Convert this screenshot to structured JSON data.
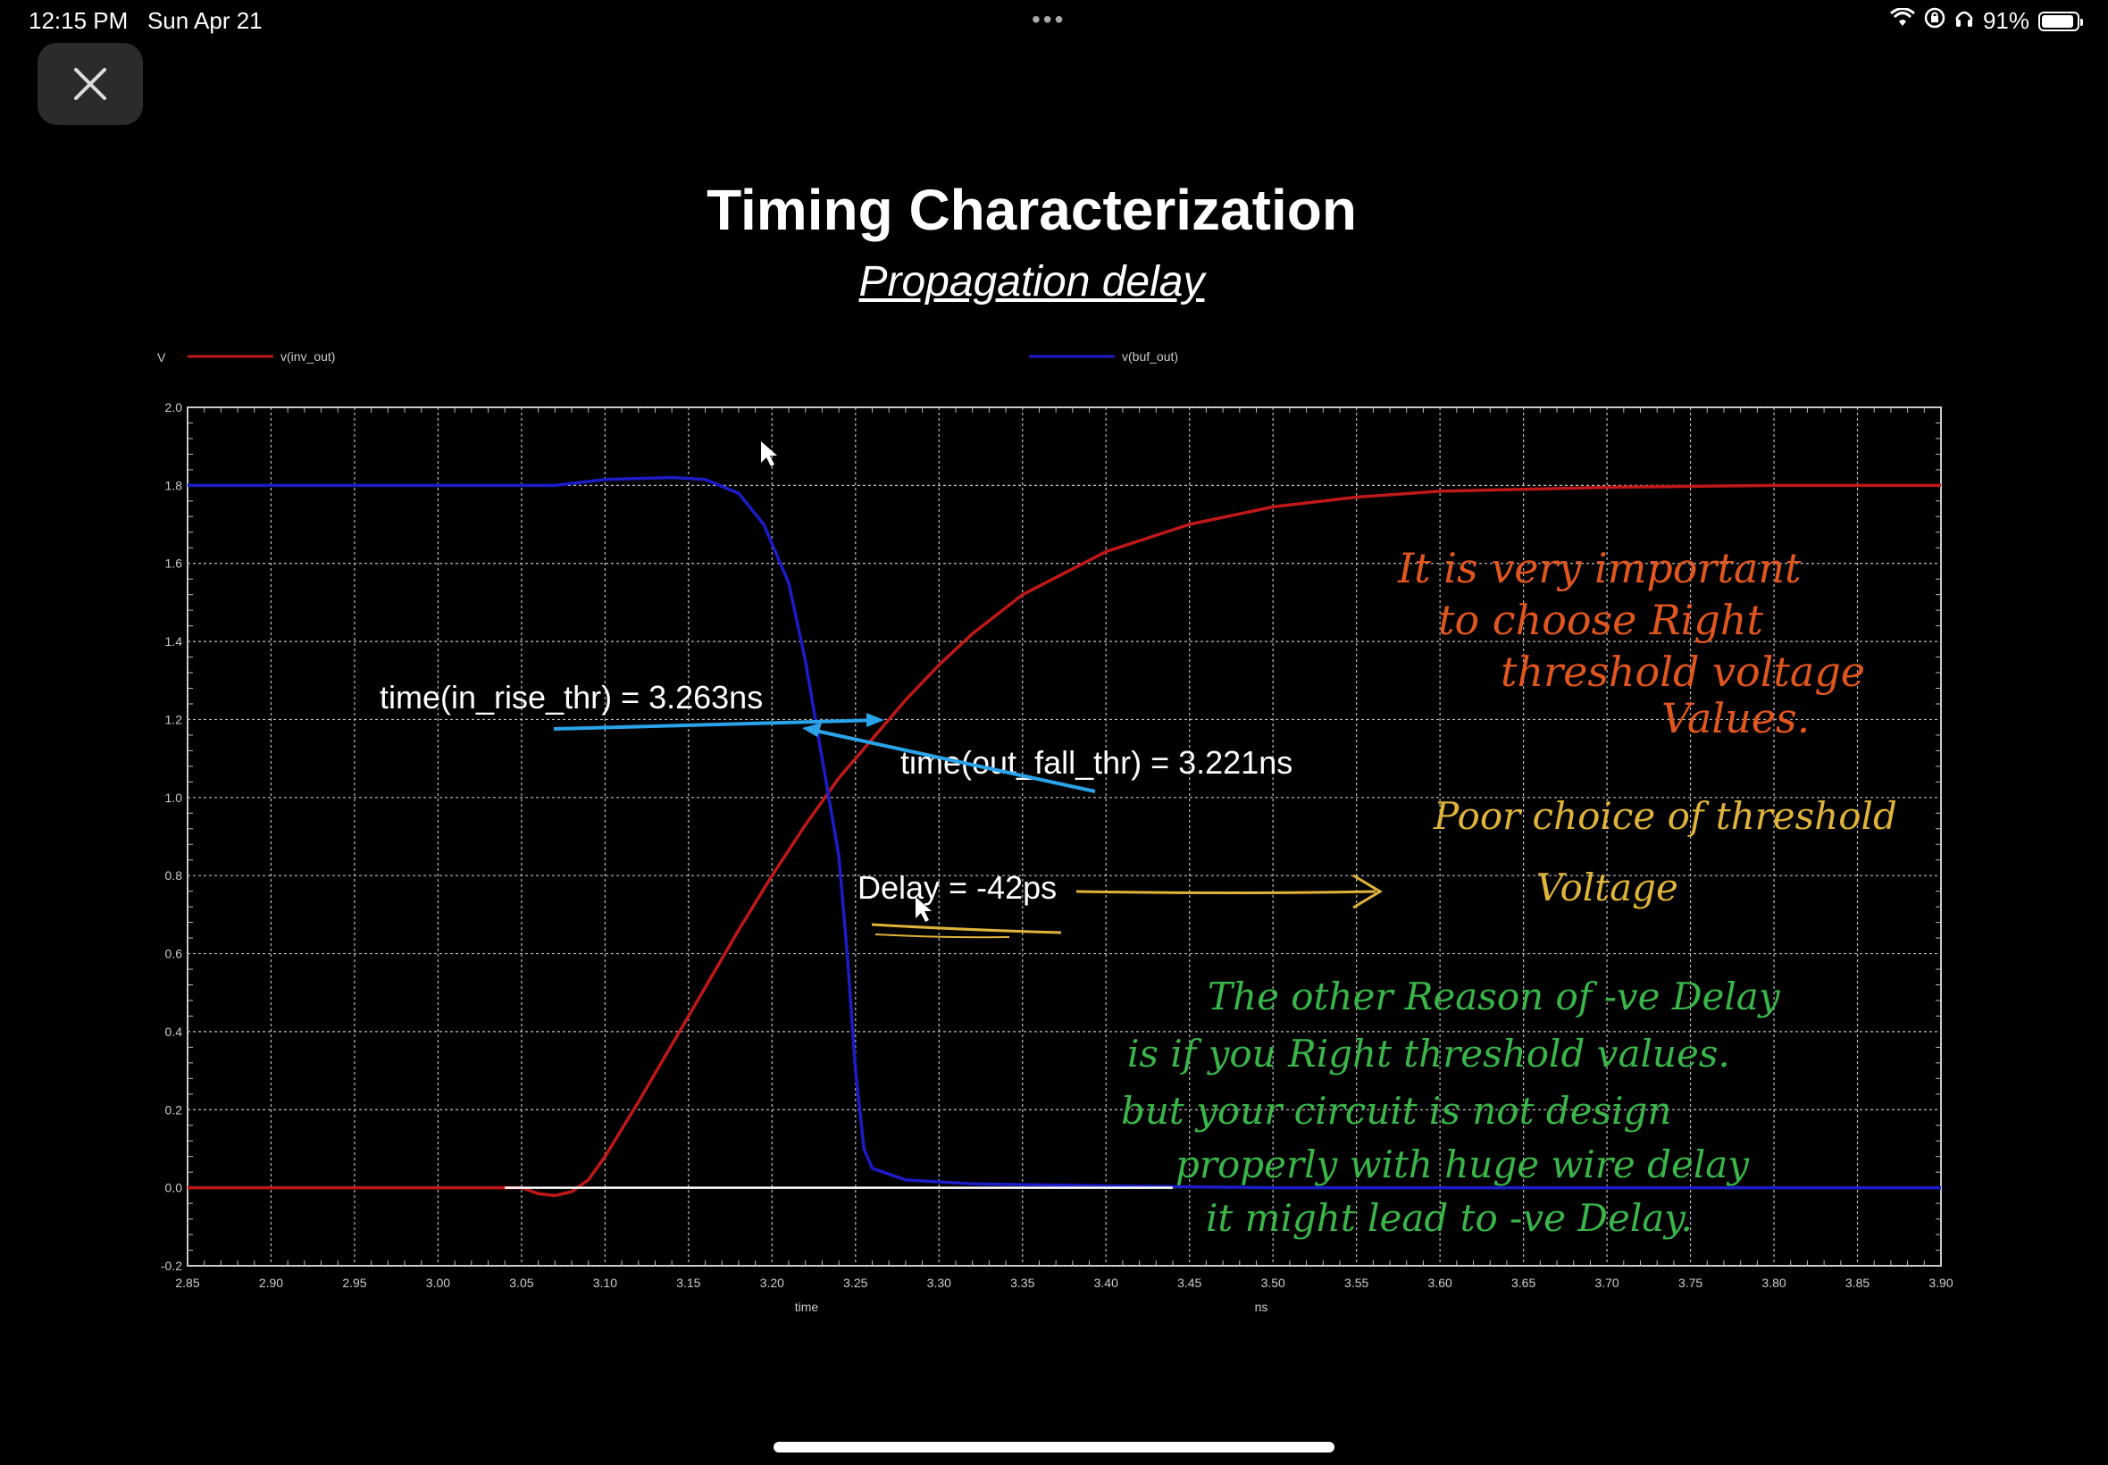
{
  "status_bar": {
    "time": "12:15 PM",
    "date": "Sun Apr 21",
    "battery_percent": "91%",
    "battery_level": 0.91
  },
  "slide": {
    "title": "Timing Characterization",
    "subtitle": "Propagation delay"
  },
  "chart_data": {
    "type": "line",
    "ylabel": "V",
    "xlabel": "time",
    "x_unit": "ns",
    "xlim": [
      2.85,
      3.9
    ],
    "ylim": [
      -0.2,
      2.0
    ],
    "x_ticks": [
      "2.85",
      "2.90",
      "2.95",
      "3.00",
      "3.05",
      "3.10",
      "3.15",
      "3.20",
      "3.25",
      "3.30",
      "3.35",
      "3.40",
      "3.45",
      "3.50",
      "3.55",
      "3.60",
      "3.65",
      "3.70",
      "3.75",
      "3.80",
      "3.85",
      "3.90"
    ],
    "y_ticks": [
      "2.0",
      "1.8",
      "1.6",
      "1.4",
      "1.2",
      "1.0",
      "0.8",
      "0.6",
      "0.4",
      "0.2",
      "0.0",
      "-0.2"
    ],
    "grid": true,
    "legend_placement": "top",
    "series": [
      {
        "name": "v(inv_out)",
        "color": "#c01818",
        "points": [
          [
            2.85,
            0.0
          ],
          [
            3.05,
            0.0
          ],
          [
            3.06,
            -0.015
          ],
          [
            3.07,
            -0.02
          ],
          [
            3.08,
            -0.01
          ],
          [
            3.09,
            0.02
          ],
          [
            3.1,
            0.08
          ],
          [
            3.12,
            0.22
          ],
          [
            3.15,
            0.44
          ],
          [
            3.18,
            0.66
          ],
          [
            3.2,
            0.8
          ],
          [
            3.22,
            0.93
          ],
          [
            3.24,
            1.05
          ],
          [
            3.26,
            1.15
          ],
          [
            3.28,
            1.25
          ],
          [
            3.3,
            1.34
          ],
          [
            3.32,
            1.42
          ],
          [
            3.35,
            1.52
          ],
          [
            3.4,
            1.63
          ],
          [
            3.45,
            1.7
          ],
          [
            3.5,
            1.745
          ],
          [
            3.55,
            1.77
          ],
          [
            3.6,
            1.785
          ],
          [
            3.7,
            1.795
          ],
          [
            3.8,
            1.8
          ],
          [
            3.9,
            1.8
          ]
        ]
      },
      {
        "name": "v(buf_out)",
        "color": "#1c1cc8",
        "points": [
          [
            2.85,
            1.8
          ],
          [
            3.07,
            1.8
          ],
          [
            3.1,
            1.815
          ],
          [
            3.14,
            1.82
          ],
          [
            3.16,
            1.815
          ],
          [
            3.18,
            1.78
          ],
          [
            3.195,
            1.7
          ],
          [
            3.21,
            1.55
          ],
          [
            3.22,
            1.35
          ],
          [
            3.23,
            1.1
          ],
          [
            3.24,
            0.85
          ],
          [
            3.245,
            0.6
          ],
          [
            3.25,
            0.3
          ],
          [
            3.255,
            0.1
          ],
          [
            3.26,
            0.05
          ],
          [
            3.28,
            0.02
          ],
          [
            3.32,
            0.01
          ],
          [
            3.4,
            0.005
          ],
          [
            3.5,
            0.0
          ],
          [
            3.9,
            0.0
          ]
        ]
      }
    ],
    "annotations": [
      {
        "text": "time(in_rise_thr) = 3.263ns",
        "color": "#ffffff"
      },
      {
        "text": "time(out_fall_thr) = 3.221ns",
        "color": "#ffffff"
      },
      {
        "text": "Delay = -42ps",
        "color": "#ffffff"
      }
    ],
    "handwritten_notes": [
      {
        "lines": [
          "It is very important",
          "to choose Right",
          "threshold voltage",
          "Values."
        ],
        "color": "#e0561e"
      },
      {
        "lines": [
          "Poor choice of threshold",
          "Voltage"
        ],
        "color": "#e0b43a"
      },
      {
        "lines": [
          "The other Reason of -ve Delay",
          "is if you Right threshold values.",
          "but your circuit is not design",
          "properly with huge wire delay",
          "it might lead to -ve Delay."
        ],
        "color": "#3ab54a"
      }
    ]
  }
}
